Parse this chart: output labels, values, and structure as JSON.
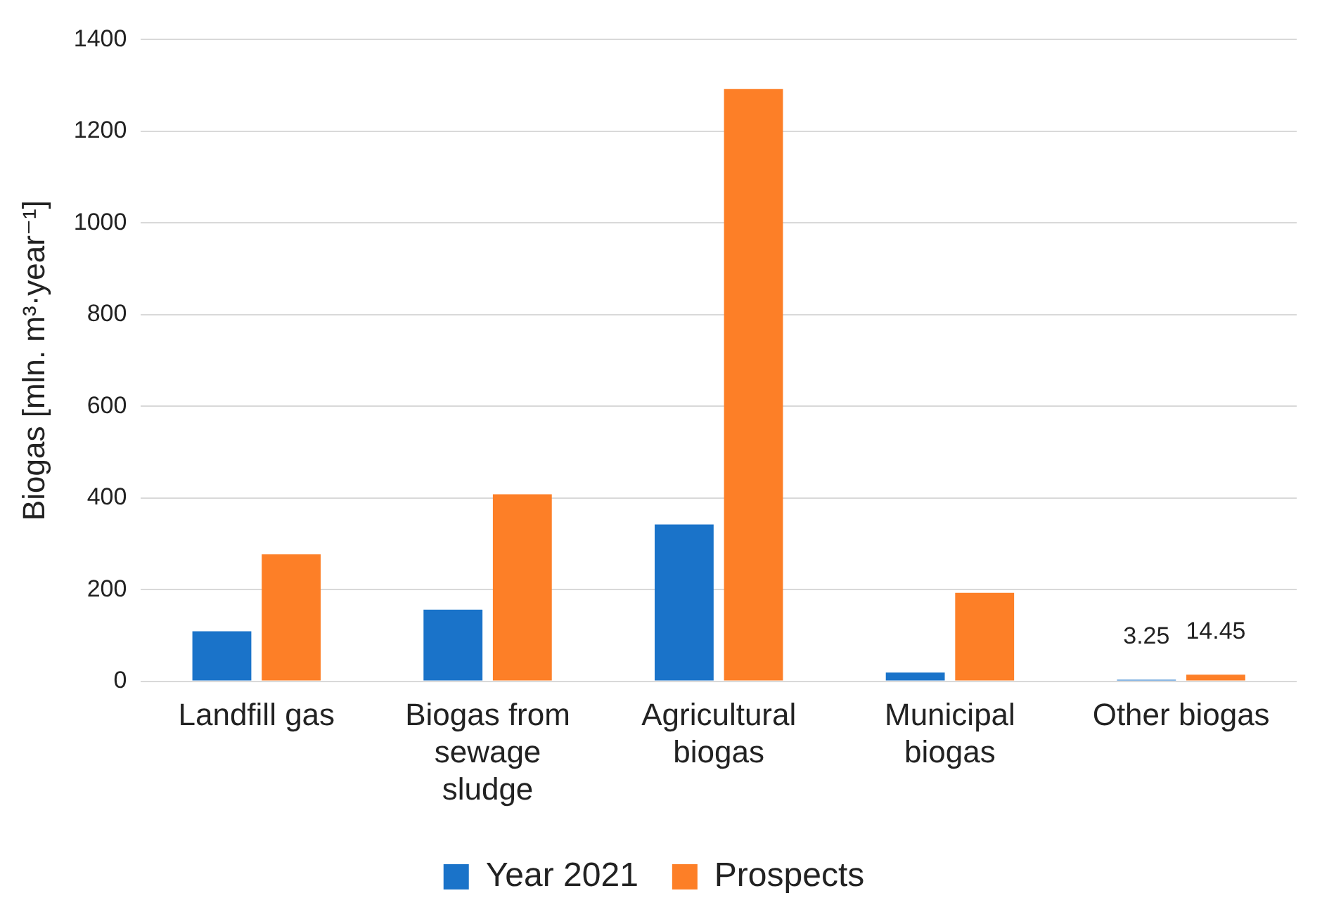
{
  "chart_data": {
    "type": "bar",
    "ylabel": "Biogas [mln. m³·year⁻¹]",
    "categories": [
      "Landfill gas",
      "Biogas from sewage sludge",
      "Agricultural biogas",
      "Municipal biogas",
      "Other biogas"
    ],
    "series": [
      {
        "name": "Year 2021",
        "color": "#1a73c9",
        "values": [
          109,
          156,
          342,
          19,
          3.25
        ],
        "value_labels": [
          null,
          null,
          null,
          null,
          "3.25"
        ]
      },
      {
        "name": "Prospects",
        "color": "#fd7f27",
        "values": [
          277,
          408,
          1292,
          193,
          14.45
        ],
        "value_labels": [
          null,
          null,
          null,
          null,
          "14.45"
        ]
      }
    ],
    "ylim": [
      0,
      1400
    ],
    "yticks": [
      0,
      200,
      400,
      600,
      800,
      1000,
      1200,
      1400
    ],
    "grid": "y",
    "legend": "bottom"
  }
}
